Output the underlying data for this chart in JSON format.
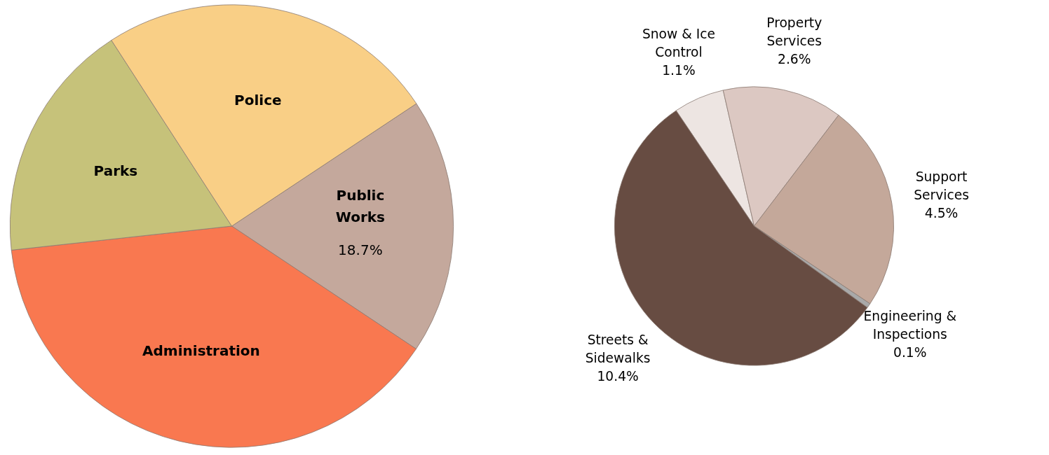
{
  "chart_data": [
    {
      "type": "pie",
      "categories": [
        "Public Works",
        "Administration",
        "Parks",
        "Police"
      ],
      "values": [
        18.7,
        38.9,
        17.6,
        24.8
      ],
      "colors": [
        "#c4a89c",
        "#f97850",
        "#c6c27a",
        "#f9cf86"
      ],
      "value_labels": [
        "18.7%",
        null,
        null,
        null
      ]
    },
    {
      "type": "pie",
      "categories": [
        "Snow & Ice Control",
        "Property Services",
        "Support Services",
        "Engineering & Inspections",
        "Streets & Sidewalks"
      ],
      "values": [
        1.1,
        2.6,
        4.5,
        0.1,
        10.4
      ],
      "colors": [
        "#ede5e2",
        "#dcc8c2",
        "#c4a89a",
        "#a9a9a9",
        "#674c42"
      ],
      "value_labels": [
        "1.1%",
        "2.6%",
        "4.5%",
        "0.1%",
        "10.4%"
      ]
    }
  ]
}
